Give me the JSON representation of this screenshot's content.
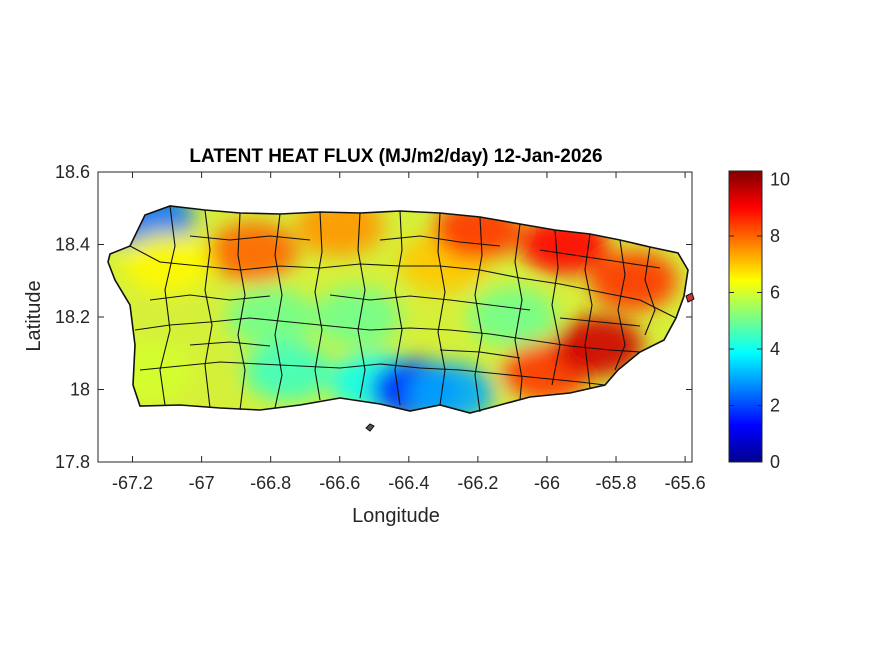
{
  "title": "LATENT HEAT FLUX (MJ/m2/day) 12-Jan-2026",
  "x_axis": {
    "label": "Longitude",
    "range": [
      -67.3,
      -65.58
    ],
    "ticks": [
      -67.2,
      -67,
      -66.8,
      -66.6,
      -66.4,
      -66.2,
      -66,
      -65.8,
      -65.6
    ],
    "tick_labels": [
      "-67.2",
      "-67",
      "-66.8",
      "-66.6",
      "-66.4",
      "-66.2",
      "-66",
      "-65.8",
      "-65.6"
    ]
  },
  "y_axis": {
    "label": "Latitude",
    "range": [
      17.8,
      18.6
    ],
    "ticks": [
      17.8,
      18,
      18.2,
      18.4,
      18.6
    ],
    "tick_labels": [
      "17.8",
      "18",
      "18.2",
      "18.4",
      "18.6"
    ]
  },
  "colorbar": {
    "colormap": "jet",
    "range": [
      0,
      10.3
    ],
    "ticks": [
      0,
      2,
      4,
      6,
      8,
      10
    ],
    "tick_labels": [
      "0",
      "2",
      "4",
      "6",
      "8",
      "10"
    ]
  },
  "chart_data": {
    "type": "heatmap",
    "title": "LATENT HEAT FLUX (MJ/m2/day) 12-Jan-2026",
    "xlabel": "Longitude",
    "ylabel": "Latitude",
    "xlim": [
      -67.3,
      -65.58
    ],
    "ylim": [
      17.8,
      18.6
    ],
    "clim": [
      0,
      10.3
    ],
    "colormap": "jet",
    "region": "Puerto Rico with municipality boundaries",
    "regional_values": [
      {
        "lon": -67.15,
        "lat": 18.47,
        "value": 2.5
      },
      {
        "lon": -67.1,
        "lat": 18.35,
        "value": 6.5
      },
      {
        "lon": -67.15,
        "lat": 18.05,
        "value": 6
      },
      {
        "lon": -66.85,
        "lat": 18.38,
        "value": 8
      },
      {
        "lon": -66.8,
        "lat": 18.2,
        "value": 5
      },
      {
        "lon": -66.75,
        "lat": 18.05,
        "value": 4.5
      },
      {
        "lon": -66.6,
        "lat": 18.45,
        "value": 7.5
      },
      {
        "lon": -66.55,
        "lat": 18.2,
        "value": 5
      },
      {
        "lon": -66.5,
        "lat": 18.02,
        "value": 4
      },
      {
        "lon": -66.38,
        "lat": 18.0,
        "value": 1.5
      },
      {
        "lon": -66.28,
        "lat": 17.99,
        "value": 3
      },
      {
        "lon": -66.3,
        "lat": 18.35,
        "value": 7
      },
      {
        "lon": -66.2,
        "lat": 18.44,
        "value": 8.5
      },
      {
        "lon": -66.1,
        "lat": 18.2,
        "value": 5
      },
      {
        "lon": -66.0,
        "lat": 18.05,
        "value": 8.5
      },
      {
        "lon": -65.95,
        "lat": 18.4,
        "value": 9
      },
      {
        "lon": -65.85,
        "lat": 18.12,
        "value": 9.5
      },
      {
        "lon": -65.75,
        "lat": 18.3,
        "value": 8.5
      }
    ]
  }
}
